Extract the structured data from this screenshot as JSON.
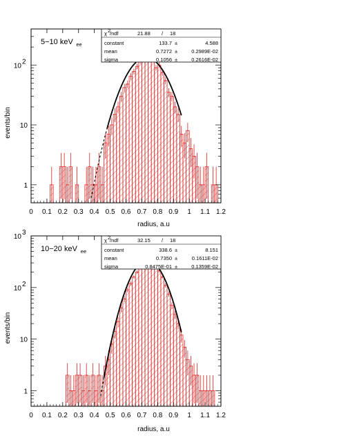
{
  "chart_data": [
    {
      "type": "bar",
      "style": "step-histogram with hatched fill, log-scale y, fit curve",
      "title": "5−10 keV",
      "title_sub": "ee",
      "xlabel": "radius, a.u",
      "ylabel": "events/bin",
      "xlim": [
        0,
        1.2
      ],
      "ylim": [
        0.5,
        400
      ],
      "yscale": "log",
      "x_ticks": [
        "0",
        "0.1",
        "0.2",
        "0.3",
        "0.4",
        "0.5",
        "0.6",
        "0.7",
        "0.8",
        "0.9",
        "1",
        "1.1",
        "1.2"
      ],
      "y_ticks": [
        {
          "value": 1,
          "label": "1",
          "exp": ""
        },
        {
          "value": 10,
          "label": "10",
          "exp": ""
        },
        {
          "value": 100,
          "label": "10",
          "exp": "2"
        }
      ],
      "colors": {
        "histogram": "#e02020",
        "fit": "#000000"
      },
      "bin_width": 0.02,
      "bins": [
        {
          "x": 0.12,
          "y": 1
        },
        {
          "x": 0.18,
          "y": 2
        },
        {
          "x": 0.2,
          "y": 2
        },
        {
          "x": 0.22,
          "y": 1
        },
        {
          "x": 0.24,
          "y": 2
        },
        {
          "x": 0.28,
          "y": 1
        },
        {
          "x": 0.34,
          "y": 1
        },
        {
          "x": 0.36,
          "y": 2
        },
        {
          "x": 0.38,
          "y": 1
        },
        {
          "x": 0.4,
          "y": 1
        },
        {
          "x": 0.42,
          "y": 2
        },
        {
          "x": 0.44,
          "y": 1
        },
        {
          "x": 0.46,
          "y": 5
        },
        {
          "x": 0.48,
          "y": 7
        },
        {
          "x": 0.5,
          "y": 10
        },
        {
          "x": 0.52,
          "y": 15
        },
        {
          "x": 0.54,
          "y": 20
        },
        {
          "x": 0.56,
          "y": 30
        },
        {
          "x": 0.58,
          "y": 42
        },
        {
          "x": 0.6,
          "y": 48
        },
        {
          "x": 0.62,
          "y": 65
        },
        {
          "x": 0.64,
          "y": 78
        },
        {
          "x": 0.66,
          "y": 95
        },
        {
          "x": 0.68,
          "y": 115
        },
        {
          "x": 0.7,
          "y": 130
        },
        {
          "x": 0.72,
          "y": 140
        },
        {
          "x": 0.74,
          "y": 128
        },
        {
          "x": 0.76,
          "y": 125
        },
        {
          "x": 0.78,
          "y": 90
        },
        {
          "x": 0.8,
          "y": 100
        },
        {
          "x": 0.82,
          "y": 75
        },
        {
          "x": 0.84,
          "y": 55
        },
        {
          "x": 0.86,
          "y": 35
        },
        {
          "x": 0.88,
          "y": 30
        },
        {
          "x": 0.9,
          "y": 20
        },
        {
          "x": 0.92,
          "y": 15
        },
        {
          "x": 0.94,
          "y": 7
        },
        {
          "x": 0.96,
          "y": 5
        },
        {
          "x": 0.98,
          "y": 8
        },
        {
          "x": 1.0,
          "y": 4
        },
        {
          "x": 1.02,
          "y": 3
        },
        {
          "x": 1.04,
          "y": 2
        },
        {
          "x": 1.06,
          "y": 1
        },
        {
          "x": 1.08,
          "y": 1
        },
        {
          "x": 1.1,
          "y": 2
        },
        {
          "x": 1.14,
          "y": 1
        },
        {
          "x": 1.16,
          "y": 1
        }
      ],
      "fit": {
        "constant": 133.7,
        "mean": 0.7272,
        "sigma": 0.1056,
        "solid_range": [
          0.48,
          0.95
        ],
        "dashed_range": [
          0.38,
          0.48
        ]
      },
      "stats_box": {
        "header": {
          "label": "χ",
          "label_sup": "2",
          "label_rest": "/ndf",
          "value": "21.88",
          "sep": "/",
          "ndf": "18"
        },
        "rows": [
          {
            "name": "constant",
            "value": "133.7",
            "pm": "±",
            "err": "4.588"
          },
          {
            "name": "mean",
            "value": "0.7272",
            "pm": "±",
            "err": "0.2989E-02"
          },
          {
            "name": "sigma",
            "value": "0.1056",
            "pm": "±",
            "err": "0.2616E-02"
          }
        ]
      }
    },
    {
      "type": "bar",
      "style": "step-histogram with hatched fill, log-scale y, fit curve",
      "title": "10−20 keV",
      "title_sub": "ee",
      "xlabel": "radius, a.u",
      "ylabel": "events/bin",
      "xlim": [
        0,
        1.2
      ],
      "ylim": [
        0.5,
        1000
      ],
      "yscale": "log",
      "x_ticks": [
        "0",
        "0.1",
        "0.2",
        "0.3",
        "0.4",
        "0.5",
        "0.6",
        "0.7",
        "0.8",
        "0.9",
        "1",
        "1.1",
        "1.2"
      ],
      "y_ticks": [
        {
          "value": 1,
          "label": "1",
          "exp": ""
        },
        {
          "value": 10,
          "label": "10",
          "exp": ""
        },
        {
          "value": 100,
          "label": "10",
          "exp": "2"
        },
        {
          "value": 1000,
          "label": "10",
          "exp": "3"
        }
      ],
      "colors": {
        "histogram": "#e02020",
        "fit": "#000000"
      },
      "bin_width": 0.02,
      "bins": [
        {
          "x": 0.22,
          "y": 2
        },
        {
          "x": 0.24,
          "y": 1
        },
        {
          "x": 0.26,
          "y": 1
        },
        {
          "x": 0.28,
          "y": 2
        },
        {
          "x": 0.3,
          "y": 2
        },
        {
          "x": 0.32,
          "y": 1
        },
        {
          "x": 0.34,
          "y": 2
        },
        {
          "x": 0.36,
          "y": 1
        },
        {
          "x": 0.38,
          "y": 2
        },
        {
          "x": 0.4,
          "y": 1
        },
        {
          "x": 0.42,
          "y": 2
        },
        {
          "x": 0.44,
          "y": 1
        },
        {
          "x": 0.46,
          "y": 3
        },
        {
          "x": 0.48,
          "y": 4
        },
        {
          "x": 0.5,
          "y": 8
        },
        {
          "x": 0.52,
          "y": 14
        },
        {
          "x": 0.54,
          "y": 22
        },
        {
          "x": 0.56,
          "y": 40
        },
        {
          "x": 0.58,
          "y": 60
        },
        {
          "x": 0.6,
          "y": 90
        },
        {
          "x": 0.62,
          "y": 120
        },
        {
          "x": 0.64,
          "y": 160
        },
        {
          "x": 0.66,
          "y": 200
        },
        {
          "x": 0.68,
          "y": 250
        },
        {
          "x": 0.7,
          "y": 290
        },
        {
          "x": 0.72,
          "y": 330
        },
        {
          "x": 0.74,
          "y": 320
        },
        {
          "x": 0.76,
          "y": 300
        },
        {
          "x": 0.78,
          "y": 270
        },
        {
          "x": 0.8,
          "y": 210
        },
        {
          "x": 0.82,
          "y": 160
        },
        {
          "x": 0.84,
          "y": 110
        },
        {
          "x": 0.86,
          "y": 75
        },
        {
          "x": 0.88,
          "y": 45
        },
        {
          "x": 0.9,
          "y": 30
        },
        {
          "x": 0.92,
          "y": 20
        },
        {
          "x": 0.94,
          "y": 12
        },
        {
          "x": 0.96,
          "y": 7
        },
        {
          "x": 0.98,
          "y": 4
        },
        {
          "x": 1.0,
          "y": 3
        },
        {
          "x": 1.02,
          "y": 2
        },
        {
          "x": 1.04,
          "y": 2
        },
        {
          "x": 1.06,
          "y": 1
        },
        {
          "x": 1.08,
          "y": 1
        },
        {
          "x": 1.1,
          "y": 1
        },
        {
          "x": 1.12,
          "y": 1
        },
        {
          "x": 1.14,
          "y": 1
        }
      ],
      "fit": {
        "constant": 338.6,
        "mean": 0.735,
        "sigma": 0.08475,
        "solid_range": [
          0.46,
          0.95
        ],
        "dashed_range": [
          0.44,
          0.46
        ]
      },
      "stats_box": {
        "header": {
          "label": "χ",
          "label_sup": "2",
          "label_rest": "/ndf",
          "value": "32.15",
          "sep": "/",
          "ndf": "18"
        },
        "rows": [
          {
            "name": "constant",
            "value": "338.6",
            "pm": "±",
            "err": "8.151"
          },
          {
            "name": "mean",
            "value": "0.7350",
            "pm": "±",
            "err": "0.1611E-02"
          },
          {
            "name": "sigma",
            "value": "0.8475E-01",
            "pm": "±",
            "err": "0.1359E-02"
          }
        ]
      }
    }
  ]
}
